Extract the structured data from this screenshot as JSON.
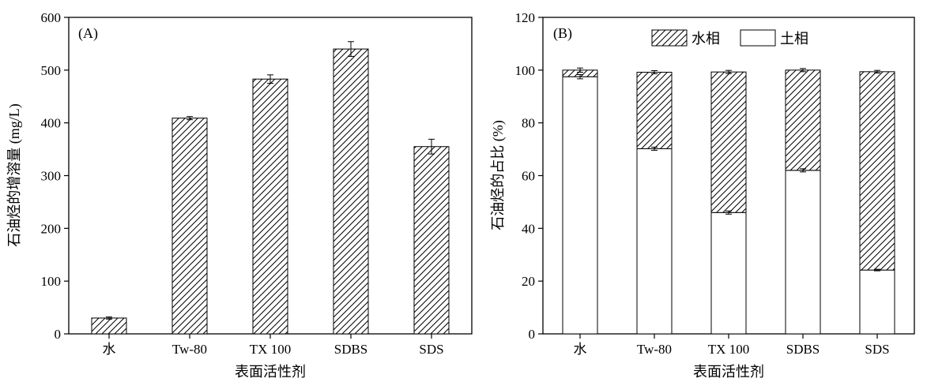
{
  "chart_data": [
    {
      "type": "bar",
      "panel_label": "(A)",
      "categories": [
        "水",
        "Tw-80",
        "TX 100",
        "SDBS",
        "SDS"
      ],
      "values": [
        30,
        409,
        483,
        540,
        355
      ],
      "errors": [
        2,
        3,
        8,
        14,
        14
      ],
      "xlabel": "表面活性剂",
      "ylabel": "石油烃的增溶量 (mg/L)",
      "ylim": [
        0,
        600
      ],
      "yticks": [
        "0",
        "100",
        "200",
        "300",
        "400",
        "500",
        "600"
      ],
      "grid": false,
      "pattern": "hatched"
    },
    {
      "type": "bar",
      "stacked": true,
      "panel_label": "(B)",
      "categories": [
        "水",
        "Tw-80",
        "TX 100",
        "SDBS",
        "SDS"
      ],
      "series": [
        {
          "name": "土相",
          "values": [
            97.5,
            70.2,
            46.0,
            62.0,
            24.2
          ],
          "errors": [
            0.8,
            0.6,
            0.6,
            0.6,
            0.3
          ]
        },
        {
          "name": "水相",
          "values": [
            2.5,
            29.0,
            53.3,
            38.0,
            75.2
          ],
          "errors": [
            0.8,
            0.6,
            0.6,
            0.6,
            0.5
          ]
        }
      ],
      "xlabel": "表面活性剂",
      "ylabel": "石油烃的占比 (%)",
      "ylim": [
        0,
        120
      ],
      "yticks": [
        "0",
        "20",
        "40",
        "60",
        "80",
        "100",
        "120"
      ],
      "grid": false,
      "legend_position": "top-center"
    }
  ]
}
